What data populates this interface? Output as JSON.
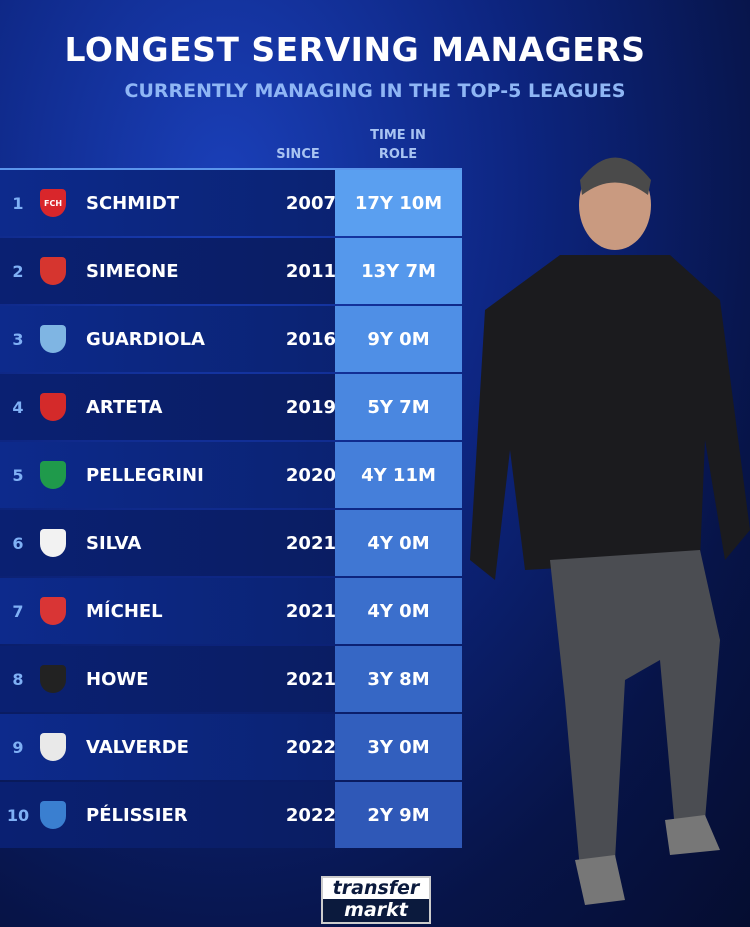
{
  "title": "LONGEST SERVING MANAGERS",
  "subtitle": "CURRENTLY MANAGING IN THE TOP-5 LEAGUES",
  "chart_data": {
    "type": "table",
    "columns": [
      "SINCE",
      "TIME IN ROLE"
    ],
    "header_since": "SINCE",
    "header_time": "TIME IN ROLE",
    "rows": [
      {
        "rank": "1",
        "club_crest": "heidenheim-crest",
        "crest_text": "FCH",
        "crest_color": "#d9262b",
        "name": "SCHMIDT",
        "since": "2007",
        "time": "17Y 10M",
        "time_color": "#5a9ff0"
      },
      {
        "rank": "2",
        "club_crest": "atletico-madrid-crest",
        "crest_text": "",
        "crest_color": "#d6352f",
        "name": "SIMEONE",
        "since": "2011",
        "time": "13Y 7M",
        "time_color": "#5598ec"
      },
      {
        "rank": "3",
        "club_crest": "manchester-city-crest",
        "crest_text": "",
        "crest_color": "#7fb5e3",
        "name": "GUARDIOLA",
        "since": "2016",
        "time": "9Y 0M",
        "time_color": "#4f8fe6"
      },
      {
        "rank": "4",
        "club_crest": "arsenal-crest",
        "crest_text": "",
        "crest_color": "#d42a2a",
        "name": "ARTETA",
        "since": "2019",
        "time": "5Y 7M",
        "time_color": "#4a87e0"
      },
      {
        "rank": "5",
        "club_crest": "real-betis-crest",
        "crest_text": "",
        "crest_color": "#1f9a4b",
        "name": "PELLEGRINI",
        "since": "2020",
        "time": "4Y 11M",
        "time_color": "#457fda"
      },
      {
        "rank": "6",
        "club_crest": "fulham-crest",
        "crest_text": "",
        "crest_color": "#f2f2f2",
        "name": "SILVA",
        "since": "2021",
        "time": "4Y 0M",
        "time_color": "#4077d3"
      },
      {
        "rank": "7",
        "club_crest": "girona-crest",
        "crest_text": "",
        "crest_color": "#d93535",
        "name": "MÍCHEL",
        "since": "2021",
        "time": "4Y 0M",
        "time_color": "#3b6fcc"
      },
      {
        "rank": "8",
        "club_crest": "newcastle-crest",
        "crest_text": "",
        "crest_color": "#222222",
        "name": "HOWE",
        "since": "2021",
        "time": "3Y 8M",
        "time_color": "#3667c5"
      },
      {
        "rank": "9",
        "club_crest": "athletic-bilbao-crest",
        "crest_text": "",
        "crest_color": "#e9e9e9",
        "name": "VALVERDE",
        "since": "2022",
        "time": "3Y 0M",
        "time_color": "#325fbe"
      },
      {
        "rank": "10",
        "club_crest": "auxerre-crest",
        "crest_text": "",
        "crest_color": "#3a7fd0",
        "name": "PÉLISSIER",
        "since": "2022",
        "time": "2Y 9M",
        "time_color": "#2f58b7"
      }
    ]
  },
  "logo": {
    "line1": "transfer",
    "line2": "markt"
  }
}
